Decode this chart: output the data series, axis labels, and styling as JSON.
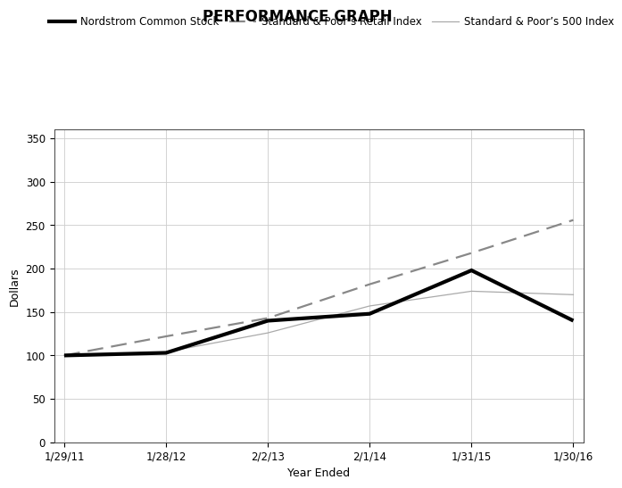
{
  "title": "PERFORMANCE GRAPH",
  "xlabel": "Year Ended",
  "ylabel": "Dollars",
  "x_labels": [
    "1/29/11",
    "1/28/12",
    "2/2/13",
    "2/1/14",
    "1/31/15",
    "1/30/16"
  ],
  "nordstrom_stock": [
    100,
    103,
    140,
    148,
    198,
    140
  ],
  "sp_retail": [
    100,
    122,
    143,
    182,
    218,
    256
  ],
  "sp_500": [
    100,
    104,
    126,
    157,
    174,
    170
  ],
  "ylim": [
    0,
    360
  ],
  "yticks": [
    0,
    50,
    100,
    150,
    200,
    250,
    300,
    350
  ],
  "stock_color": "#000000",
  "retail_color": "#888888",
  "sp500_color": "#aaaaaa",
  "legend_labels": [
    "Nordstrom Common Stock",
    "Standard & Poor’s Retail Index",
    "Standard & Poor’s 500 Index"
  ],
  "bg_color": "#ffffff",
  "title_fontsize": 12,
  "label_fontsize": 9,
  "tick_fontsize": 8.5
}
